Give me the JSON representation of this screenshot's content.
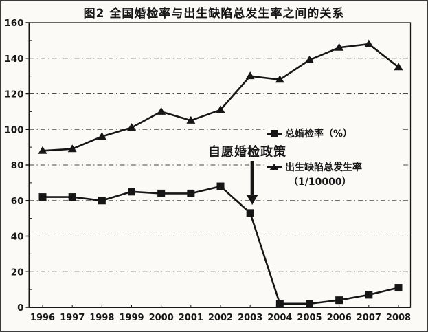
{
  "title": {
    "text": "图2 全国婚检率与出生缺陷总发生率之间的关系"
  },
  "chart_data": {
    "type": "line",
    "title": "图2 全国婚检率与出生缺陷总发生率之间的关系",
    "categories": [
      "1996",
      "1997",
      "1998",
      "1999",
      "2000",
      "2001",
      "2002",
      "2003",
      "2004",
      "2005",
      "2006",
      "2007",
      "2008"
    ],
    "series": [
      {
        "name": "总婚检率（%）",
        "marker": "square",
        "values": [
          62,
          62,
          60,
          65,
          64,
          64,
          68,
          53,
          2,
          2,
          4,
          7,
          11
        ]
      },
      {
        "name": "出生缺陷总发生率（1/10000）",
        "marker": "triangle",
        "values": [
          88,
          89,
          96,
          101,
          110,
          105,
          111,
          130,
          128,
          139,
          146,
          148,
          135
        ]
      }
    ],
    "ylim": [
      0,
      160
    ],
    "ytick_step": 20,
    "yminor_step": 10,
    "grid": "horizontal-dashdot",
    "legend_position": "middle-right",
    "line_color": "#161616",
    "annotation": {
      "text": "自愿婚检政策",
      "arrow": "down",
      "target_category": "2003"
    }
  },
  "legend": {
    "premarital": {
      "label": "总婚检率（%）"
    },
    "birth_defect": {
      "line1": "出生缺陷总发生率",
      "line2": "（1/10000）"
    }
  },
  "annotation": {
    "text": "自愿婚检政策"
  }
}
